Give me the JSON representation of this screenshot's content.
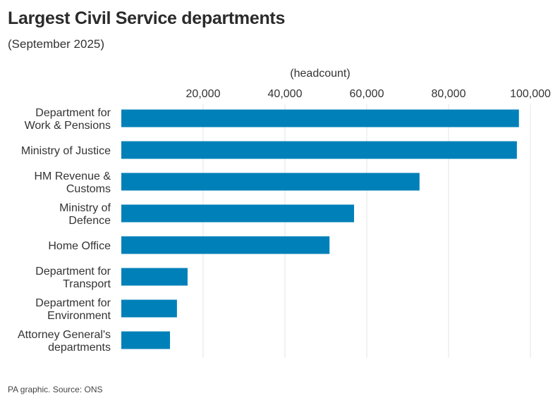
{
  "header": {
    "title": "Largest Civil Service departments",
    "subtitle": "(September 2025)"
  },
  "footer": {
    "credit": "PA graphic. Source: ONS"
  },
  "colors": {
    "bar": "#0080b9",
    "grid": "#e6e6e6",
    "text": "#333333"
  },
  "chart_data": {
    "type": "bar",
    "orientation": "horizontal",
    "title": "Largest Civil Service departments",
    "subtitle": "(September 2025)",
    "xlabel": "(headcount)",
    "ylabel": "",
    "xlim": [
      0,
      100000
    ],
    "xticks": [
      20000,
      40000,
      60000,
      80000,
      100000
    ],
    "xtick_labels": [
      "20,000",
      "40,000",
      "60,000",
      "80,000",
      "100,000"
    ],
    "x_axis_position": "top",
    "grid": true,
    "categories": [
      [
        "Department for",
        "Work & Pensions"
      ],
      [
        "Ministry of Justice"
      ],
      [
        "HM Revenue &",
        "Customs"
      ],
      [
        "Ministry of",
        "Defence"
      ],
      [
        "Home Office"
      ],
      [
        "Department for",
        "Transport"
      ],
      [
        "Department for",
        "Environment"
      ],
      [
        "Attorney General's",
        "departments"
      ]
    ],
    "values": [
      97200,
      96700,
      72900,
      56900,
      50900,
      16200,
      13600,
      11900
    ],
    "source": "PA graphic. Source: ONS"
  }
}
